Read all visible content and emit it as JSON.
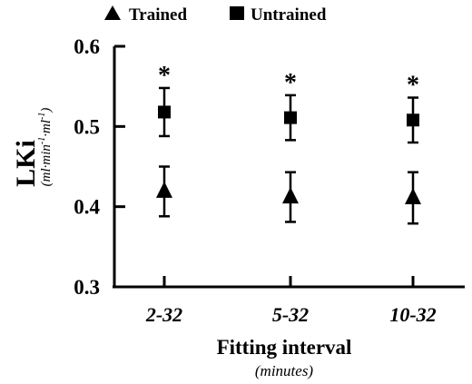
{
  "chart_data": {
    "type": "scatter",
    "title": "",
    "legend": {
      "placement": "top-left",
      "entries": [
        {
          "name": "Trained",
          "marker": "triangle"
        },
        {
          "name": "Untrained",
          "marker": "square"
        }
      ]
    },
    "ylabel": "LKi",
    "ylabel_unit_parts": [
      "(ml·min",
      "-1",
      "·ml",
      "-1",
      ")"
    ],
    "xlabel": "Fitting interval",
    "xlabel_sub": "(minutes)",
    "ylim": [
      0.3,
      0.6
    ],
    "yticks": [
      "0.3",
      "0.4",
      "0.5",
      "0.6"
    ],
    "ytick_values": [
      0.3,
      0.4,
      0.5,
      0.6
    ],
    "categories": [
      "2-32",
      "5-32",
      "10-32"
    ],
    "series": [
      {
        "name": "Trained",
        "marker": "triangle",
        "values": [
          0.419,
          0.412,
          0.411
        ],
        "errors": [
          0.031,
          0.031,
          0.032
        ]
      },
      {
        "name": "Untrained",
        "marker": "square",
        "values": [
          0.518,
          0.511,
          0.508
        ],
        "errors": [
          0.03,
          0.028,
          0.028
        ]
      }
    ],
    "annotations": [
      "*",
      "*",
      "*"
    ],
    "grid": false,
    "colors": {
      "ink": "#000000",
      "background": "#ffffff"
    }
  }
}
